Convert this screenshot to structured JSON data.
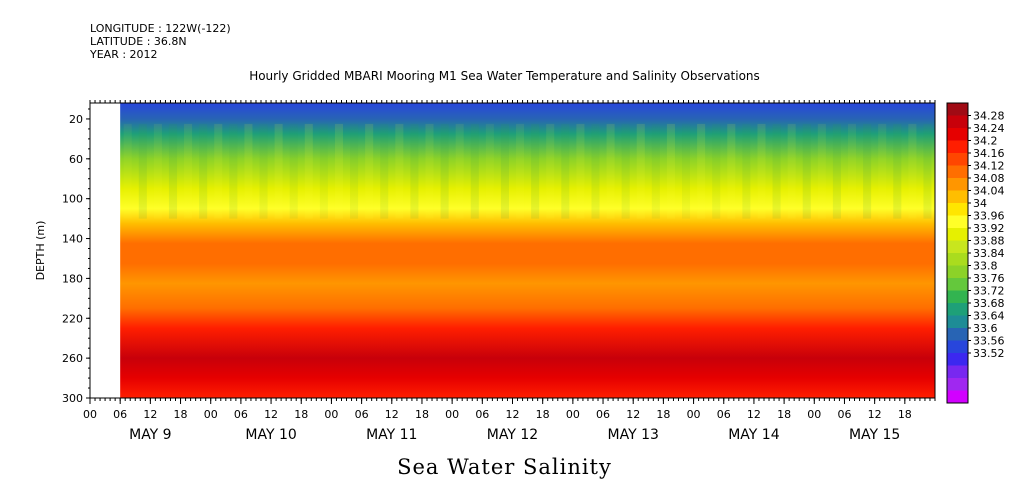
{
  "header": {
    "longitude": "LONGITUDE : 122W(-122)",
    "latitude": "LATITUDE : 36.8N",
    "year": "YEAR : 2012"
  },
  "chart_data": {
    "type": "heatmap",
    "title": "Hourly Gridded MBARI Mooring M1 Sea Water Temperature and Salinity Observations",
    "variable_label": "Sea Water Salinity",
    "ylabel": "DEPTH (m)",
    "xlabel": "",
    "y_ticks": [
      20,
      60,
      100,
      140,
      180,
      220,
      260,
      300
    ],
    "ylim": [
      300,
      4
    ],
    "x_hour_ticks": [
      "00",
      "06",
      "12",
      "18",
      "00",
      "06",
      "12",
      "18",
      "00",
      "06",
      "12",
      "18",
      "00",
      "06",
      "12",
      "18",
      "00",
      "06",
      "12",
      "18",
      "00",
      "06",
      "12",
      "18",
      "00",
      "06",
      "12",
      "18"
    ],
    "x_day_labels": [
      "MAY  9",
      "MAY 10",
      "MAY 11",
      "MAY 12",
      "MAY 13",
      "MAY 14",
      "MAY 15"
    ],
    "x_range_hours": [
      0,
      168
    ],
    "data_start_hour": 6,
    "colorbar_ticks": [
      "34.28",
      "34.24",
      "34.2",
      "34.16",
      "34.12",
      "34.08",
      "34.04",
      "34",
      "33.96",
      "33.92",
      "33.88",
      "33.84",
      "33.8",
      "33.76",
      "33.72",
      "33.68",
      "33.64",
      "33.6",
      "33.56",
      "33.52"
    ],
    "colorbar_colors": [
      "#a00a14",
      "#c8000a",
      "#e60000",
      "#ff1e00",
      "#ff4600",
      "#ff6e00",
      "#ff9600",
      "#ffbe00",
      "#ffe600",
      "#ffff28",
      "#e6f000",
      "#c8e61e",
      "#aadc1e",
      "#8cd228",
      "#64c83c",
      "#32b450",
      "#1ea078",
      "#1e8c96",
      "#2864b4",
      "#2846dc",
      "#3c28f0",
      "#7828f0",
      "#a028f0",
      "#d200ff"
    ],
    "depth_profile": [
      {
        "depth": 4,
        "value": 33.64
      },
      {
        "depth": 20,
        "value": 33.68
      },
      {
        "depth": 35,
        "value": 33.76
      },
      {
        "depth": 60,
        "value": 33.86
      },
      {
        "depth": 90,
        "value": 33.94
      },
      {
        "depth": 110,
        "value": 34.0
      },
      {
        "depth": 125,
        "value": 34.04
      },
      {
        "depth": 145,
        "value": 34.12
      },
      {
        "depth": 165,
        "value": 34.13
      },
      {
        "depth": 185,
        "value": 34.1
      },
      {
        "depth": 210,
        "value": 34.12
      },
      {
        "depth": 230,
        "value": 34.2
      },
      {
        "depth": 260,
        "value": 34.26
      },
      {
        "depth": 280,
        "value": 34.22
      },
      {
        "depth": 300,
        "value": 34.2
      }
    ]
  }
}
